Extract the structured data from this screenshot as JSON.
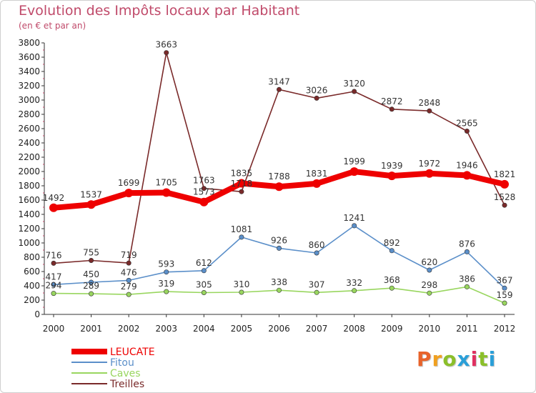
{
  "title": "Evolution des Impôts locaux par Habitant",
  "subtitle": "(en € et par an)",
  "logo": {
    "text": "Proxiti",
    "colors": [
      "#e8632a",
      "#f0a020",
      "#8bbf2a",
      "#2a9fd8",
      "#e03060",
      "#8bbf2a",
      "#2a9fd8"
    ]
  },
  "chart_data": {
    "type": "line",
    "title": "Evolution des Impôts locaux par Habitant",
    "subtitle": "(en € et par an)",
    "xlabel": "",
    "ylabel": "",
    "ylim": [
      0,
      3800
    ],
    "yticks": [
      0,
      200,
      400,
      600,
      800,
      1000,
      1200,
      1400,
      1600,
      1800,
      2000,
      2200,
      2400,
      2600,
      2800,
      3000,
      3200,
      3400,
      3600,
      3800
    ],
    "x": [
      "2000",
      "2001",
      "2002",
      "2003",
      "2004",
      "2005",
      "2006",
      "2007",
      "2008",
      "2009",
      "2010",
      "2011",
      "2012"
    ],
    "legend_position": "bottom-left",
    "grid": false,
    "series": [
      {
        "name": "LEUCATE",
        "color": "#ee0000",
        "values": [
          1492,
          1537,
          1699,
          1705,
          1573,
          1835,
          1788,
          1831,
          1999,
          1939,
          1972,
          1946,
          1821
        ]
      },
      {
        "name": "Fitou",
        "color": "#5b8fc9",
        "values": [
          417,
          450,
          476,
          593,
          612,
          1081,
          926,
          860,
          1241,
          892,
          620,
          876,
          367
        ]
      },
      {
        "name": "Caves",
        "color": "#99d65f",
        "values": [
          294,
          289,
          279,
          319,
          305,
          310,
          338,
          307,
          332,
          368,
          298,
          386,
          159
        ]
      },
      {
        "name": "Treilles",
        "color": "#7a2a2a",
        "values": [
          716,
          755,
          719,
          3663,
          1763,
          1718,
          3147,
          3026,
          3120,
          2872,
          2848,
          2565,
          1528
        ]
      }
    ]
  }
}
